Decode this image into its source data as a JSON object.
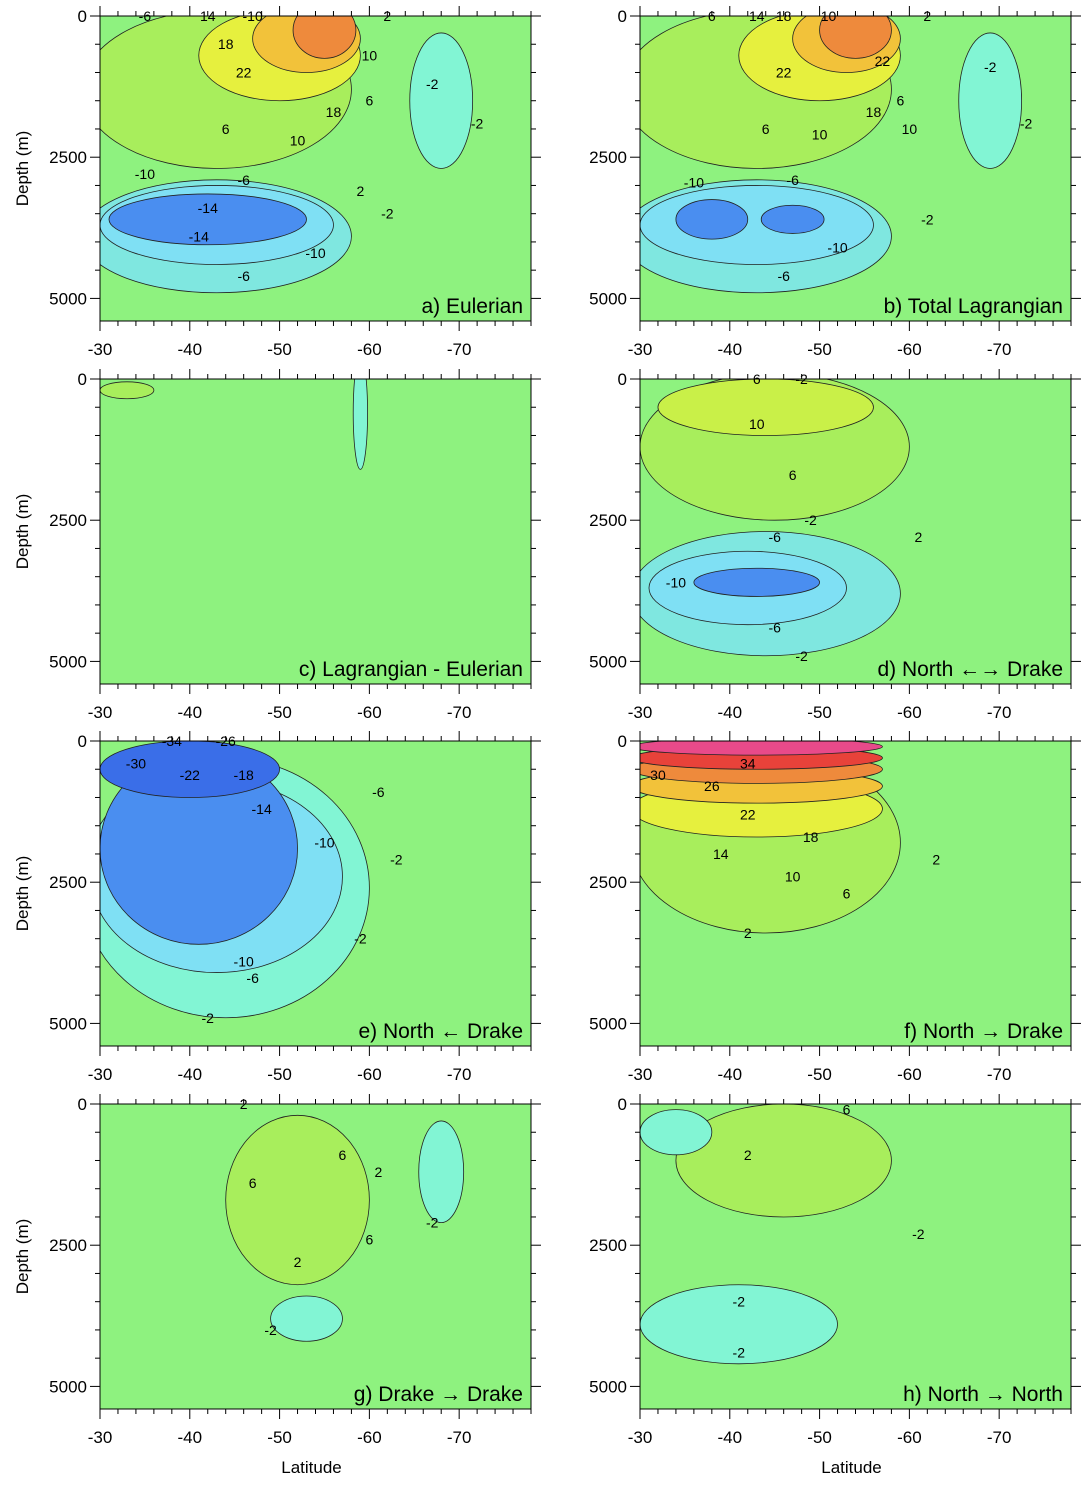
{
  "chart_data": [
    {
      "type": "heatmap",
      "title": "a) Eulerian",
      "xlabel": "",
      "ylabel": "Depth (m)",
      "xlim": [
        -30,
        -78
      ],
      "ylim": [
        0,
        5400
      ],
      "x_ticks": [
        -30,
        -40,
        -50,
        -60,
        -70
      ],
      "y_ticks": [
        0,
        2500,
        5000
      ],
      "fill": {
        "bg": "#8ef27f",
        "regions": [
          {
            "color": "#a8ee5c",
            "lat": -43,
            "depth": 1300,
            "rlat": 15,
            "rdepth": 1400
          },
          {
            "color": "#e6f03e",
            "lat": -50,
            "depth": 700,
            "rlat": 9,
            "rdepth": 800
          },
          {
            "color": "#f2c23a",
            "lat": -53,
            "depth": 400,
            "rlat": 6,
            "rdepth": 600
          },
          {
            "color": "#ee8a3c",
            "lat": -55,
            "depth": 250,
            "rlat": 3.5,
            "rdepth": 500
          },
          {
            "color": "#7fe7e0",
            "lat": -43,
            "depth": 3900,
            "rlat": 15,
            "rdepth": 1000
          },
          {
            "color": "#7fe0f4",
            "lat": -43,
            "depth": 3700,
            "rlat": 13,
            "rdepth": 700
          },
          {
            "color": "#4a8ef0",
            "lat": -42,
            "depth": 3600,
            "rlat": 11,
            "rdepth": 450
          },
          {
            "color": "#82f5d4",
            "lat": -68,
            "depth": 1500,
            "rlat": 3.5,
            "rdepth": 1200
          }
        ]
      },
      "contour_labels": [
        {
          "text": "-6",
          "lat": -35,
          "depth": 0
        },
        {
          "text": "14",
          "lat": -42,
          "depth": 0
        },
        {
          "text": "-10",
          "lat": -47,
          "depth": 0
        },
        {
          "text": "2",
          "lat": -62,
          "depth": 0
        },
        {
          "text": "18",
          "lat": -44,
          "depth": 500
        },
        {
          "text": "22",
          "lat": -46,
          "depth": 1000
        },
        {
          "text": "10",
          "lat": -60,
          "depth": 700
        },
        {
          "text": "-2",
          "lat": -67,
          "depth": 1200
        },
        {
          "text": "6",
          "lat": -60,
          "depth": 1500
        },
        {
          "text": "18",
          "lat": -56,
          "depth": 1700
        },
        {
          "text": "6",
          "lat": -44,
          "depth": 2000
        },
        {
          "text": "10",
          "lat": -52,
          "depth": 2200
        },
        {
          "text": "-2",
          "lat": -72,
          "depth": 1900
        },
        {
          "text": "-10",
          "lat": -35,
          "depth": 2800
        },
        {
          "text": "-6",
          "lat": -46,
          "depth": 2900
        },
        {
          "text": "2",
          "lat": -59,
          "depth": 3100
        },
        {
          "text": "-14",
          "lat": -42,
          "depth": 3400
        },
        {
          "text": "-2",
          "lat": -62,
          "depth": 3500
        },
        {
          "text": "-14",
          "lat": -41,
          "depth": 3900
        },
        {
          "text": "-10",
          "lat": -54,
          "depth": 4200
        },
        {
          "text": "-6",
          "lat": -46,
          "depth": 4600
        }
      ]
    },
    {
      "type": "heatmap",
      "title": "b) Total Lagrangian",
      "xlabel": "",
      "ylabel": "",
      "xlim": [
        -30,
        -78
      ],
      "ylim": [
        0,
        5400
      ],
      "x_ticks": [
        -30,
        -40,
        -50,
        -60,
        -70
      ],
      "y_ticks": [
        0,
        2500,
        5000
      ],
      "fill": {
        "bg": "#8ef27f",
        "regions": [
          {
            "color": "#a8ee5c",
            "lat": -43,
            "depth": 1300,
            "rlat": 15,
            "rdepth": 1400
          },
          {
            "color": "#e6f03e",
            "lat": -50,
            "depth": 700,
            "rlat": 9,
            "rdepth": 800
          },
          {
            "color": "#f2c23a",
            "lat": -53,
            "depth": 400,
            "rlat": 6,
            "rdepth": 600
          },
          {
            "color": "#ee8a3c",
            "lat": -54,
            "depth": 250,
            "rlat": 4,
            "rdepth": 500
          },
          {
            "color": "#7fe7e0",
            "lat": -43,
            "depth": 3900,
            "rlat": 15,
            "rdepth": 1000
          },
          {
            "color": "#7fe0f4",
            "lat": -43,
            "depth": 3700,
            "rlat": 13,
            "rdepth": 700
          },
          {
            "color": "#4a8ef0",
            "lat": -38,
            "depth": 3600,
            "rlat": 4,
            "rdepth": 350
          },
          {
            "color": "#4a8ef0",
            "lat": -47,
            "depth": 3600,
            "rlat": 3.5,
            "rdepth": 250
          },
          {
            "color": "#82f5d4",
            "lat": -69,
            "depth": 1500,
            "rlat": 3.5,
            "rdepth": 1200
          }
        ]
      },
      "contour_labels": [
        {
          "text": "6",
          "lat": -38,
          "depth": 0
        },
        {
          "text": "14",
          "lat": -43,
          "depth": 0
        },
        {
          "text": "18",
          "lat": -46,
          "depth": 0
        },
        {
          "text": "10",
          "lat": -51,
          "depth": 0
        },
        {
          "text": "2",
          "lat": -62,
          "depth": 0
        },
        {
          "text": "22",
          "lat": -46,
          "depth": 1000
        },
        {
          "text": "22",
          "lat": -57,
          "depth": 800
        },
        {
          "text": "-2",
          "lat": -69,
          "depth": 900
        },
        {
          "text": "18",
          "lat": -56,
          "depth": 1700
        },
        {
          "text": "6",
          "lat": -59,
          "depth": 1500
        },
        {
          "text": "10",
          "lat": -60,
          "depth": 2000
        },
        {
          "text": "6",
          "lat": -44,
          "depth": 2000
        },
        {
          "text": "10",
          "lat": -50,
          "depth": 2100
        },
        {
          "text": "-2",
          "lat": -73,
          "depth": 1900
        },
        {
          "text": "-10",
          "lat": -36,
          "depth": 2950
        },
        {
          "text": "-6",
          "lat": -47,
          "depth": 2900
        },
        {
          "text": "-2",
          "lat": -62,
          "depth": 3600
        },
        {
          "text": "-10",
          "lat": -52,
          "depth": 4100
        },
        {
          "text": "-6",
          "lat": -46,
          "depth": 4600
        }
      ]
    },
    {
      "type": "heatmap",
      "title": "c) Lagrangian - Eulerian",
      "xlabel": "",
      "ylabel": "Depth (m)",
      "xlim": [
        -30,
        -78
      ],
      "ylim": [
        0,
        5400
      ],
      "x_ticks": [
        -30,
        -40,
        -50,
        -60,
        -70
      ],
      "y_ticks": [
        0,
        2500,
        5000
      ],
      "fill": {
        "bg": "#8ef27f",
        "regions": [
          {
            "color": "#a8ee5c",
            "lat": -33,
            "depth": 200,
            "rlat": 3,
            "rdepth": 150
          },
          {
            "color": "#82f5d4",
            "lat": -59,
            "depth": 600,
            "rlat": 0.8,
            "rdepth": 1000
          }
        ]
      },
      "contour_labels": []
    },
    {
      "type": "heatmap",
      "title": "d) North ←→ Drake",
      "xlabel": "",
      "ylabel": "",
      "xlim": [
        -30,
        -78
      ],
      "ylim": [
        0,
        5400
      ],
      "x_ticks": [
        -30,
        -40,
        -50,
        -60,
        -70
      ],
      "y_ticks": [
        0,
        2500,
        5000
      ],
      "fill": {
        "bg": "#8ef27f",
        "regions": [
          {
            "color": "#a8ee5c",
            "lat": -45,
            "depth": 1200,
            "rlat": 15,
            "rdepth": 1300
          },
          {
            "color": "#c9f048",
            "lat": -44,
            "depth": 500,
            "rlat": 12,
            "rdepth": 500
          },
          {
            "color": "#7fe7e0",
            "lat": -44,
            "depth": 3800,
            "rlat": 15,
            "rdepth": 1100
          },
          {
            "color": "#7fe0f4",
            "lat": -42,
            "depth": 3700,
            "rlat": 11,
            "rdepth": 650
          },
          {
            "color": "#4a8ef0",
            "lat": -43,
            "depth": 3600,
            "rlat": 7,
            "rdepth": 250
          }
        ]
      },
      "contour_labels": [
        {
          "text": "6",
          "lat": -43,
          "depth": 0
        },
        {
          "text": "-2",
          "lat": -48,
          "depth": 0
        },
        {
          "text": "10",
          "lat": -43,
          "depth": 800
        },
        {
          "text": "6",
          "lat": -47,
          "depth": 1700
        },
        {
          "text": "-2",
          "lat": -49,
          "depth": 2500
        },
        {
          "text": "-6",
          "lat": -45,
          "depth": 2800
        },
        {
          "text": "2",
          "lat": -61,
          "depth": 2800
        },
        {
          "text": "-10",
          "lat": -34,
          "depth": 3600
        },
        {
          "text": "-6",
          "lat": -45,
          "depth": 4400
        },
        {
          "text": "-2",
          "lat": -48,
          "depth": 4900
        }
      ]
    },
    {
      "type": "heatmap",
      "title": "e) North ← Drake",
      "xlabel": "",
      "ylabel": "Depth (m)",
      "xlim": [
        -30,
        -78
      ],
      "ylim": [
        0,
        5400
      ],
      "x_ticks": [
        -30,
        -40,
        -50,
        -60,
        -70
      ],
      "y_ticks": [
        0,
        2500,
        5000
      ],
      "fill": {
        "bg": "#8ef27f",
        "regions": [
          {
            "color": "#82f5d4",
            "lat": -44,
            "depth": 2600,
            "rlat": 16,
            "rdepth": 2300
          },
          {
            "color": "#7fe0f4",
            "lat": -43,
            "depth": 2400,
            "rlat": 14,
            "rdepth": 1700
          },
          {
            "color": "#4a8ef0",
            "lat": -41,
            "depth": 1900,
            "rlat": 11,
            "rdepth": 1700
          },
          {
            "color": "#3a6ee8",
            "lat": -40,
            "depth": 500,
            "rlat": 10,
            "rdepth": 500
          }
        ]
      },
      "contour_labels": [
        {
          "text": "-34",
          "lat": -38,
          "depth": 0
        },
        {
          "text": "-26",
          "lat": -44,
          "depth": 0
        },
        {
          "text": "-30",
          "lat": -34,
          "depth": 400
        },
        {
          "text": "-22",
          "lat": -40,
          "depth": 600
        },
        {
          "text": "-18",
          "lat": -46,
          "depth": 600
        },
        {
          "text": "-14",
          "lat": -48,
          "depth": 1200
        },
        {
          "text": "-6",
          "lat": -61,
          "depth": 900
        },
        {
          "text": "-10",
          "lat": -55,
          "depth": 1800
        },
        {
          "text": "-2",
          "lat": -63,
          "depth": 2100
        },
        {
          "text": "-2",
          "lat": -59,
          "depth": 3500
        },
        {
          "text": "-10",
          "lat": -46,
          "depth": 3900
        },
        {
          "text": "-6",
          "lat": -47,
          "depth": 4200
        },
        {
          "text": "-2",
          "lat": -42,
          "depth": 4900
        }
      ]
    },
    {
      "type": "heatmap",
      "title": "f) North → Drake",
      "xlabel": "",
      "ylabel": "",
      "xlim": [
        -30,
        -78
      ],
      "ylim": [
        0,
        5400
      ],
      "x_ticks": [
        -30,
        -40,
        -50,
        -60,
        -70
      ],
      "y_ticks": [
        0,
        2500,
        5000
      ],
      "fill": {
        "bg": "#8ef27f",
        "regions": [
          {
            "color": "#a8ee5c",
            "lat": -44,
            "depth": 1800,
            "rlat": 15,
            "rdepth": 1600
          },
          {
            "color": "#e6f03e",
            "lat": -43,
            "depth": 1200,
            "rlat": 14,
            "rdepth": 500
          },
          {
            "color": "#f2c23a",
            "lat": -43,
            "depth": 800,
            "rlat": 14,
            "rdepth": 300
          },
          {
            "color": "#ee8a3c",
            "lat": -43,
            "depth": 500,
            "rlat": 14,
            "rdepth": 250
          },
          {
            "color": "#e8423a",
            "lat": -43,
            "depth": 300,
            "rlat": 14,
            "rdepth": 200
          },
          {
            "color": "#e84a8a",
            "lat": -43,
            "depth": 100,
            "rlat": 14,
            "rdepth": 150
          }
        ]
      },
      "contour_labels": [
        {
          "text": "34",
          "lat": -42,
          "depth": 400
        },
        {
          "text": "30",
          "lat": -32,
          "depth": 600
        },
        {
          "text": "26",
          "lat": -38,
          "depth": 800
        },
        {
          "text": "22",
          "lat": -42,
          "depth": 1300
        },
        {
          "text": "18",
          "lat": -49,
          "depth": 1700
        },
        {
          "text": "14",
          "lat": -39,
          "depth": 2000
        },
        {
          "text": "10",
          "lat": -47,
          "depth": 2400
        },
        {
          "text": "6",
          "lat": -53,
          "depth": 2700
        },
        {
          "text": "2",
          "lat": -63,
          "depth": 2100
        },
        {
          "text": "2",
          "lat": -42,
          "depth": 3400
        }
      ]
    },
    {
      "type": "heatmap",
      "title": "g) Drake → Drake",
      "xlabel": "Latitude",
      "ylabel": "Depth (m)",
      "xlim": [
        -30,
        -78
      ],
      "ylim": [
        0,
        5400
      ],
      "x_ticks": [
        -30,
        -40,
        -50,
        -60,
        -70
      ],
      "y_ticks": [
        0,
        2500,
        5000
      ],
      "fill": {
        "bg": "#8ef27f",
        "regions": [
          {
            "color": "#a8ee5c",
            "lat": -52,
            "depth": 1700,
            "rlat": 8,
            "rdepth": 1500
          },
          {
            "color": "#82f5d4",
            "lat": -68,
            "depth": 1200,
            "rlat": 2.5,
            "rdepth": 900
          },
          {
            "color": "#82f5d4",
            "lat": -53,
            "depth": 3800,
            "rlat": 4,
            "rdepth": 400
          }
        ]
      },
      "contour_labels": [
        {
          "text": "2",
          "lat": -46,
          "depth": 0
        },
        {
          "text": "6",
          "lat": -57,
          "depth": 900
        },
        {
          "text": "2",
          "lat": -61,
          "depth": 1200
        },
        {
          "text": "6",
          "lat": -47,
          "depth": 1400
        },
        {
          "text": "-2",
          "lat": -67,
          "depth": 2100
        },
        {
          "text": "6",
          "lat": -60,
          "depth": 2400
        },
        {
          "text": "2",
          "lat": -52,
          "depth": 2800
        },
        {
          "text": "-2",
          "lat": -49,
          "depth": 4000
        }
      ]
    },
    {
      "type": "heatmap",
      "title": "h) North → North",
      "xlabel": "Latitude",
      "ylabel": "",
      "xlim": [
        -30,
        -78
      ],
      "ylim": [
        0,
        5400
      ],
      "x_ticks": [
        -30,
        -40,
        -50,
        -60,
        -70
      ],
      "y_ticks": [
        0,
        2500,
        5000
      ],
      "fill": {
        "bg": "#8ef27f",
        "regions": [
          {
            "color": "#a8ee5c",
            "lat": -46,
            "depth": 1000,
            "rlat": 12,
            "rdepth": 1000
          },
          {
            "color": "#82f5d4",
            "lat": -34,
            "depth": 500,
            "rlat": 4,
            "rdepth": 400
          },
          {
            "color": "#82f5d4",
            "lat": -41,
            "depth": 3900,
            "rlat": 11,
            "rdepth": 700
          }
        ]
      },
      "contour_labels": [
        {
          "text": "6",
          "lat": -53,
          "depth": 100
        },
        {
          "text": "2",
          "lat": -42,
          "depth": 900
        },
        {
          "text": "-2",
          "lat": -61,
          "depth": 2300
        },
        {
          "text": "-2",
          "lat": -41,
          "depth": 3500
        },
        {
          "text": "-2",
          "lat": -41,
          "depth": 4400
        }
      ]
    }
  ]
}
